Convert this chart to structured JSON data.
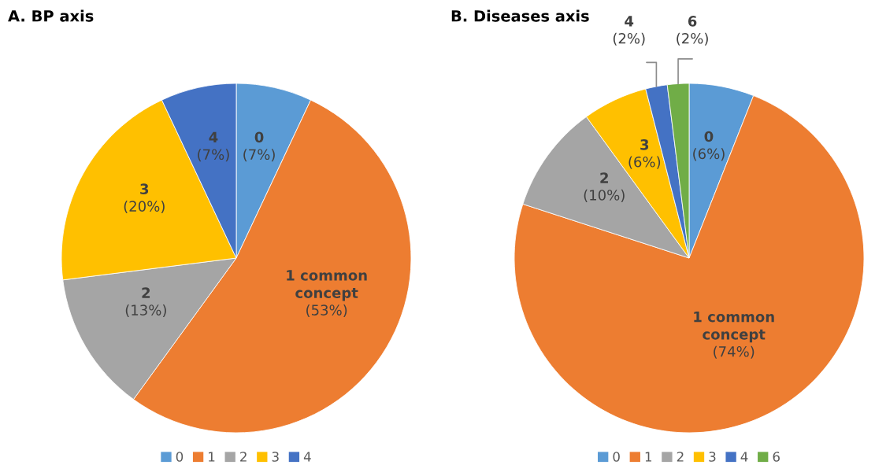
{
  "chart_data": [
    {
      "type": "pie",
      "title": "A. BP axis",
      "categories": [
        "0",
        "1",
        "2",
        "3",
        "4"
      ],
      "values": [
        7,
        53,
        13,
        20,
        7
      ],
      "colors": [
        "#5b9bd5",
        "#ed7d31",
        "#a5a5a5",
        "#ffc000",
        "#4472c4"
      ],
      "value_labels": [
        "0\n(7%)",
        "1 common concept\n(53%)",
        "2\n(13%)",
        "3\n(20%)",
        "4\n(7%)"
      ],
      "legend": "bottom"
    },
    {
      "type": "pie",
      "title": "B. Diseases axis",
      "categories": [
        "0",
        "1",
        "2",
        "3",
        "4",
        "6"
      ],
      "values": [
        6,
        74,
        10,
        6,
        2,
        2
      ],
      "colors": [
        "#5b9bd5",
        "#ed7d31",
        "#a5a5a5",
        "#ffc000",
        "#4472c4",
        "#70ad47"
      ],
      "value_labels": [
        "0\n(6%)",
        "1 common concept\n(74%)",
        "2\n(10%)",
        "3\n(6%)",
        "4\n(2%)",
        "6\n(2%)"
      ],
      "legend": "bottom"
    }
  ]
}
